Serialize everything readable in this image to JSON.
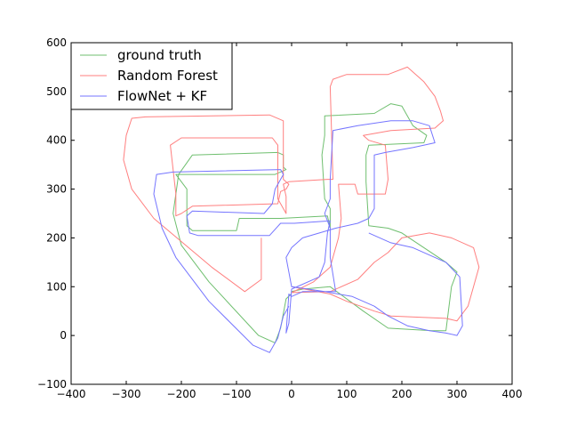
{
  "chart_data": {
    "type": "line",
    "title": "",
    "xlabel": "",
    "ylabel": "",
    "xlim": [
      -400,
      400
    ],
    "ylim": [
      -100,
      600
    ],
    "xticks": [
      -400,
      -300,
      -200,
      -100,
      0,
      100,
      200,
      300,
      400
    ],
    "yticks": [
      -100,
      0,
      100,
      200,
      300,
      400,
      500,
      600
    ],
    "xtick_labels": [
      "−400",
      "−300",
      "−200",
      "−100",
      "0",
      "100",
      "200",
      "300",
      "400"
    ],
    "ytick_labels": [
      "−100",
      "0",
      "100",
      "200",
      "300",
      "400",
      "500",
      "600"
    ],
    "grid": false,
    "legend": "upper-left",
    "series": [
      {
        "name": "ground truth",
        "color": "#6fbf6f",
        "points": [
          [
            -1,
            85
          ],
          [
            -10,
            75
          ],
          [
            -20,
            15
          ],
          [
            -30,
            -15
          ],
          [
            -60,
            0
          ],
          [
            -150,
            110
          ],
          [
            -200,
            185
          ],
          [
            -215,
            250
          ],
          [
            -205,
            330
          ],
          [
            -180,
            370
          ],
          [
            -25,
            375
          ],
          [
            -15,
            370
          ],
          [
            -15,
            345
          ],
          [
            -10,
            340
          ],
          [
            -30,
            330
          ],
          [
            -210,
            330
          ],
          [
            -190,
            300
          ],
          [
            -190,
            225
          ],
          [
            -180,
            215
          ],
          [
            -100,
            215
          ],
          [
            -95,
            240
          ],
          [
            -20,
            240
          ],
          [
            65,
            245
          ],
          [
            70,
            220
          ],
          [
            70,
            260
          ],
          [
            60,
            280
          ],
          [
            55,
            370
          ],
          [
            60,
            410
          ],
          [
            60,
            450
          ],
          [
            150,
            455
          ],
          [
            180,
            475
          ],
          [
            200,
            470
          ],
          [
            220,
            430
          ],
          [
            245,
            410
          ],
          [
            240,
            395
          ],
          [
            140,
            390
          ],
          [
            135,
            370
          ],
          [
            135,
            315
          ],
          [
            140,
            225
          ],
          [
            175,
            220
          ],
          [
            200,
            210
          ],
          [
            280,
            150
          ],
          [
            300,
            130
          ],
          [
            290,
            100
          ],
          [
            280,
            10
          ],
          [
            255,
            10
          ],
          [
            175,
            15
          ],
          [
            130,
            50
          ],
          [
            70,
            100
          ],
          [
            20,
            95
          ],
          [
            0,
            90
          ]
        ]
      },
      {
        "name": "Random Forest",
        "color": "#ff7f7f",
        "points": [
          [
            -55,
            200
          ],
          [
            -55,
            115
          ],
          [
            -85,
            90
          ],
          [
            -145,
            140
          ],
          [
            -250,
            240
          ],
          [
            -290,
            300
          ],
          [
            -305,
            360
          ],
          [
            -300,
            410
          ],
          [
            -290,
            445
          ],
          [
            -265,
            448
          ],
          [
            -40,
            452
          ],
          [
            -15,
            440
          ],
          [
            -15,
            320
          ],
          [
            -5,
            310
          ],
          [
            -10,
            300
          ],
          [
            -20,
            295
          ],
          [
            -25,
            270
          ],
          [
            -180,
            265
          ],
          [
            -200,
            250
          ],
          [
            -210,
            245
          ],
          [
            -210,
            290
          ],
          [
            -220,
            390
          ],
          [
            -200,
            405
          ],
          [
            -35,
            405
          ],
          [
            -25,
            390
          ],
          [
            -25,
            280
          ],
          [
            -20,
            270
          ],
          [
            -10,
            250
          ],
          [
            -10,
            285
          ],
          [
            -15,
            310
          ],
          [
            -5,
            315
          ],
          [
            65,
            320
          ],
          [
            75,
            320
          ],
          [
            70,
            510
          ],
          [
            75,
            525
          ],
          [
            100,
            535
          ],
          [
            175,
            535
          ],
          [
            210,
            550
          ],
          [
            240,
            520
          ],
          [
            260,
            490
          ],
          [
            270,
            460
          ],
          [
            275,
            440
          ],
          [
            260,
            425
          ],
          [
            180,
            420
          ],
          [
            130,
            410
          ],
          [
            140,
            400
          ],
          [
            170,
            390
          ],
          [
            175,
            320
          ],
          [
            170,
            290
          ],
          [
            120,
            290
          ],
          [
            115,
            310
          ],
          [
            85,
            310
          ],
          [
            90,
            240
          ],
          [
            85,
            200
          ],
          [
            70,
            140
          ],
          [
            40,
            110
          ],
          [
            0,
            88
          ],
          [
            70,
            90
          ],
          [
            120,
            115
          ],
          [
            150,
            150
          ],
          [
            175,
            170
          ],
          [
            200,
            200
          ],
          [
            250,
            210
          ],
          [
            290,
            200
          ],
          [
            330,
            180
          ],
          [
            340,
            140
          ],
          [
            320,
            60
          ],
          [
            300,
            30
          ],
          [
            280,
            35
          ],
          [
            180,
            40
          ],
          [
            150,
            50
          ],
          [
            100,
            70
          ],
          [
            70,
            85
          ],
          [
            0,
            100
          ]
        ]
      },
      {
        "name": "FlowNet + KF",
        "color": "#7575ff",
        "points": [
          [
            -5,
            60
          ],
          [
            -15,
            40
          ],
          [
            -25,
            -5
          ],
          [
            -40,
            -35
          ],
          [
            -70,
            -20
          ],
          [
            -150,
            70
          ],
          [
            -210,
            160
          ],
          [
            -235,
            220
          ],
          [
            -250,
            290
          ],
          [
            -245,
            330
          ],
          [
            -215,
            335
          ],
          [
            -20,
            340
          ],
          [
            -15,
            330
          ],
          [
            -20,
            320
          ],
          [
            -25,
            310
          ],
          [
            -30,
            300
          ],
          [
            -35,
            270
          ],
          [
            -50,
            250
          ],
          [
            -180,
            255
          ],
          [
            -190,
            245
          ],
          [
            -185,
            210
          ],
          [
            -170,
            205
          ],
          [
            -40,
            205
          ],
          [
            -20,
            230
          ],
          [
            5,
            230
          ],
          [
            70,
            235
          ],
          [
            65,
            210
          ],
          [
            60,
            150
          ],
          [
            50,
            120
          ],
          [
            0,
            95
          ],
          [
            -5,
            25
          ],
          [
            -10,
            5
          ],
          [
            -5,
            85
          ],
          [
            0,
            80
          ],
          [
            20,
            90
          ],
          [
            80,
            90
          ],
          [
            70,
            160
          ],
          [
            70,
            220
          ],
          [
            60,
            250
          ],
          [
            70,
            280
          ],
          [
            70,
            320
          ],
          [
            75,
            420
          ],
          [
            120,
            430
          ],
          [
            180,
            440
          ],
          [
            220,
            440
          ],
          [
            250,
            430
          ],
          [
            260,
            395
          ],
          [
            220,
            385
          ],
          [
            170,
            375
          ],
          [
            150,
            370
          ],
          [
            150,
            260
          ],
          [
            140,
            240
          ],
          [
            120,
            230
          ],
          [
            80,
            220
          ],
          [
            20,
            200
          ],
          [
            0,
            180
          ],
          [
            -10,
            160
          ],
          [
            -5,
            130
          ],
          [
            0,
            100
          ],
          [
            60,
            90
          ],
          [
            110,
            80
          ],
          [
            150,
            60
          ],
          [
            175,
            40
          ],
          [
            210,
            20
          ],
          [
            250,
            10
          ],
          [
            280,
            5
          ],
          [
            300,
            0
          ],
          [
            310,
            20
          ],
          [
            305,
            120
          ],
          [
            280,
            150
          ],
          [
            220,
            180
          ],
          [
            180,
            190
          ],
          [
            140,
            210
          ]
        ]
      }
    ]
  }
}
